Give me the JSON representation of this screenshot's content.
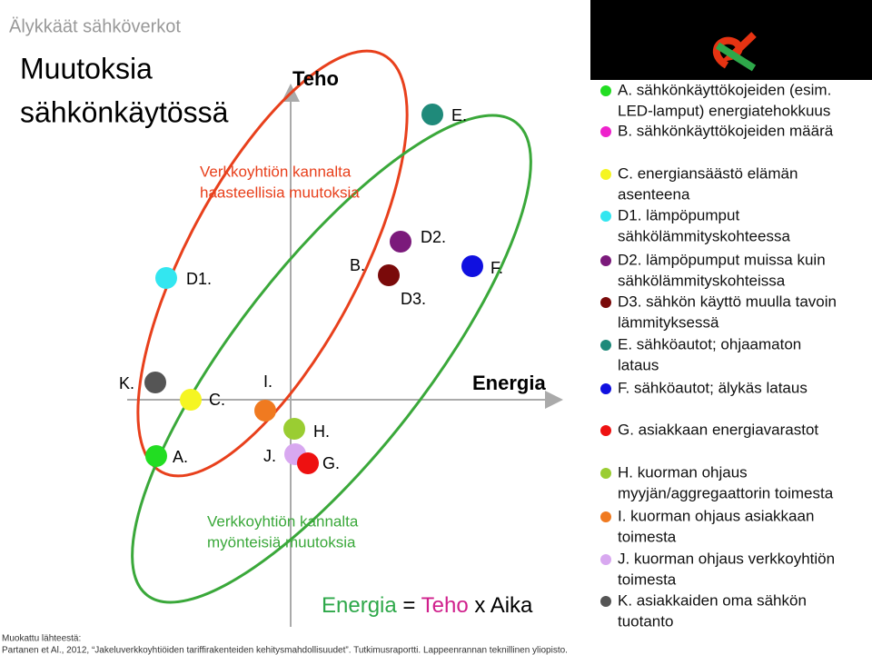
{
  "header": {
    "subtitle": "Älykkäät sähköverkot",
    "title": [
      "Muutoksia",
      "sähkönkäytössä"
    ]
  },
  "diagram": {
    "y_axis": "Teho",
    "x_axis": "Energia",
    "challenging": [
      "Verkkoyhtiön kannalta",
      "haasteellisia muutoksia"
    ],
    "positive": [
      "Verkkoyhtiön kannalta",
      "myönteisiä muutoksia"
    ],
    "points": [
      "D1.",
      "B.",
      "D2.",
      "D3.",
      "F.",
      "E.",
      "K.",
      "C.",
      "I.",
      "H.",
      "A.",
      "J.",
      "G."
    ],
    "formula": [
      "Energia",
      "=",
      "Teho",
      "x",
      "Aika"
    ]
  },
  "legend": [
    {
      "lines": [
        "A. sähkönkäyttökojeiden (esim.",
        "LED-lamput) energiatehokkuus"
      ]
    },
    {
      "lines": [
        "B. sähkönkäyttökojeiden määrä"
      ]
    },
    {
      "lines": [
        "C. energiansäästö elämän",
        "asenteena"
      ]
    },
    {
      "lines": [
        "D1. lämpöpumput",
        "sähkölämmityskohteessa"
      ]
    },
    {
      "lines": [
        "D2. lämpöpumput muissa kuin",
        "sähkölämmityskohteissa"
      ]
    },
    {
      "lines": [
        "D3. sähkön käyttö muulla tavoin",
        "lämmityksessä"
      ]
    },
    {
      "lines": [
        "E. sähköautot; ohjaamaton",
        "lataus"
      ]
    },
    {
      "lines": [
        "F. sähköautot; älykäs lataus"
      ]
    },
    {
      "lines": [
        "G. asiakkaan energiavarastot"
      ]
    },
    {
      "lines": [
        "H. kuorman ohjaus",
        "myyjän/aggregaattorin toimesta"
      ]
    },
    {
      "lines": [
        "I. kuorman ohjaus asiakkaan",
        "toimesta"
      ]
    },
    {
      "lines": [
        "J. kuorman ohjaus verkkoyhtiön",
        "toimesta"
      ]
    },
    {
      "lines": [
        "K. asiakkaiden oma sähkön",
        "tuotanto"
      ]
    }
  ],
  "source": [
    "Muokattu lähteestä:",
    "Partanen et Al., 2012, “Jakeluverkkoyhtiöiden tariffirakenteiden kehitysmahdollisuudet”. Tutkimusraportti. Lappeenrannan teknillinen yliopisto."
  ]
}
